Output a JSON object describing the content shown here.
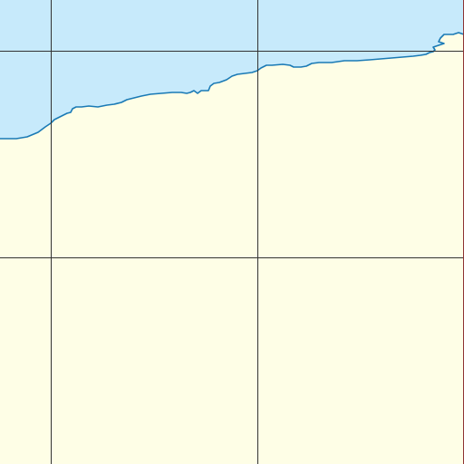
{
  "map": {
    "colors": {
      "water": "#c7eafb",
      "land": "#fefee6",
      "coastline": "#1a7ab5",
      "grid": "#333333",
      "border": "#cc3333"
    },
    "layers": [
      "water",
      "land",
      "coastline",
      "graticule",
      "tile-border"
    ]
  }
}
